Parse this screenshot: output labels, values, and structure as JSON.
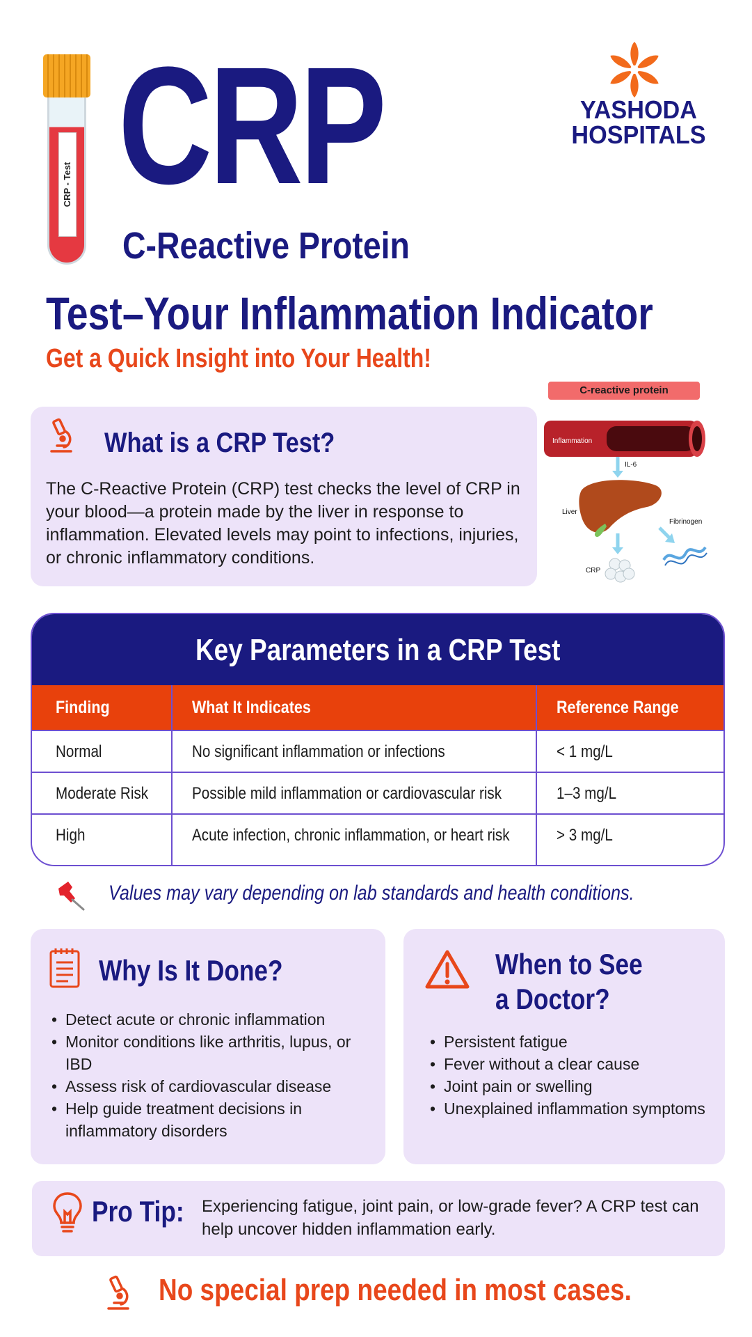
{
  "brand": {
    "name_line1": "YASHODA",
    "name_line2": "HOSPITALS",
    "accent_orange": "#e8471b",
    "navy": "#1a1a80",
    "card_bg": "#ede3f9"
  },
  "tube": {
    "label": "CRP - Test"
  },
  "header": {
    "title": "CRP",
    "subtitle": "C-Reactive Protein",
    "heading": "Test–Your Inflammation Indicator",
    "tagline": "Get a Quick Insight into Your Health!"
  },
  "what": {
    "icon": "microscope-icon",
    "title": "What is a CRP Test?",
    "body": "The C-Reactive Protein (CRP) test checks the level of CRP in your blood—a protein made by the liver in response to inflammation. Elevated levels may point to infections, injuries, or chronic inflammatory conditions."
  },
  "diagram": {
    "title": "C-reactive protein",
    "labels": {
      "inflammation": "Inflammation",
      "il6": "IL-6",
      "liver": "Liver",
      "fibrinogen": "Fibrinogen",
      "crp": "CRP"
    }
  },
  "table": {
    "title": "Key Parameters in a CRP Test",
    "columns": [
      "Finding",
      "What It Indicates",
      "Reference Range"
    ],
    "rows": [
      [
        "Normal",
        "No significant inflammation or infections",
        "< 1 mg/L"
      ],
      [
        "Moderate Risk",
        "Possible mild inflammation or cardiovascular risk",
        "1–3 mg/L"
      ],
      [
        "High",
        "Acute infection, chronic inflammation, or heart risk",
        "> 3 mg/L"
      ]
    ]
  },
  "note": {
    "icon": "pushpin-icon",
    "text": "Values may vary depending on lab standards and health conditions."
  },
  "why": {
    "icon": "checklist-icon",
    "title": "Why Is It Done?",
    "items": [
      "Detect acute or chronic inflammation",
      "Monitor conditions like arthritis, lupus, or IBD",
      "Assess risk of cardiovascular disease",
      "Help guide treatment decisions in inflammatory disorders"
    ]
  },
  "when": {
    "icon": "warning-icon",
    "title_line1": "When to See",
    "title_line2": "a Doctor?",
    "items": [
      "Persistent fatigue",
      "Fever without a clear cause",
      "Joint pain or swelling",
      "Unexplained inflammation symptoms"
    ]
  },
  "tip": {
    "icon": "lightbulb-icon",
    "label": "Pro Tip:",
    "text": "Experiencing fatigue, joint pain, or low-grade fever? A CRP test can help uncover hidden inflammation early."
  },
  "footer": {
    "icon": "microscope-icon",
    "text": "No special prep needed in most cases."
  }
}
